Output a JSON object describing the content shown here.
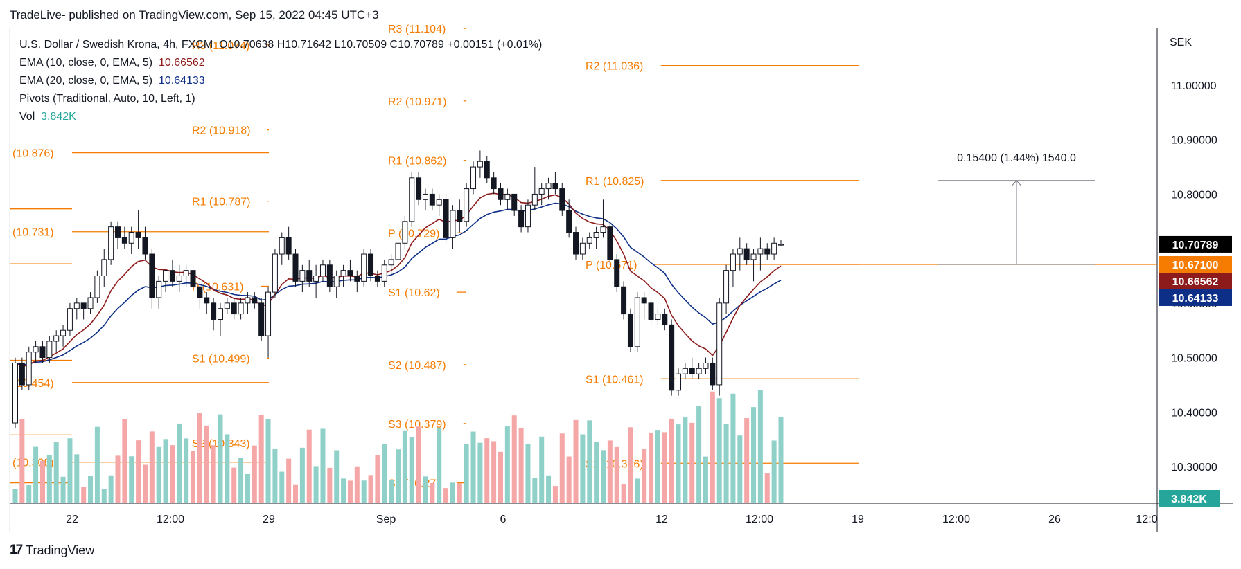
{
  "caption": "TradeLive- published on TradingView.com, Sep 15, 2022 04:45 UTC+3",
  "footer": {
    "logo_text": "TradingView",
    "logo_icon": "tradingview-logo-icon"
  },
  "legend": {
    "symbol": "U.S. Dollar / Swedish Krona, 4h, FXCM",
    "ohlc": "O10.70638  H10.71642  L10.70509  C10.70789  +0.00151 (+0.01%)",
    "ema10_label": "EMA (10, close, 0, EMA, 5)",
    "ema10_value": "10.66562",
    "ema20_label": "EMA (20, close, 0, EMA, 5)",
    "ema20_value": "10.64133",
    "pivots_label": "Pivots (Traditional, Auto, 10, Left, 1)",
    "vol_label": "Vol",
    "vol_value": "3.842K"
  },
  "chart_data": {
    "type": "candlestick",
    "axis_unit": "SEK",
    "yticks": [
      "11.00000",
      "10.90000",
      "10.80000",
      "10.70000",
      "10.60000",
      "10.50000",
      "10.40000",
      "10.30000"
    ],
    "ytick_values": [
      11.0,
      10.9,
      10.8,
      10.7,
      10.6,
      10.5,
      10.4,
      10.3
    ],
    "xticks": [
      "22",
      "12:00",
      "29",
      "Sep",
      "6",
      "12",
      "12:00",
      "19",
      "12:00",
      "26",
      "12:0"
    ],
    "price_tags": [
      {
        "text": "10.70789",
        "value": 10.70789,
        "bg": "#000000"
      },
      {
        "text": "10.67100",
        "value": 10.671,
        "bg": "#f57c00"
      },
      {
        "text": "10.66562",
        "value": 10.66562,
        "bg": "#8e1b1b"
      },
      {
        "text": "10.64133",
        "value": 10.64133,
        "bg": "#0d2f87"
      }
    ],
    "volume_tag": {
      "text": "3.842K",
      "bg": "#26a69a"
    },
    "pivot_levels": [
      {
        "label": "(10.876)",
        "value": 10.876,
        "period": 0
      },
      {
        "label": "(10.731)",
        "value": 10.731,
        "period": 0
      },
      {
        "label": "(10.454)",
        "value": 10.454,
        "period": 0
      },
      {
        "label": "(10.308)",
        "value": 10.308,
        "period": 0
      },
      {
        "label": "",
        "value": 10.773,
        "period": 0
      },
      {
        "label": "",
        "value": 10.672,
        "period": 0
      },
      {
        "label": "",
        "value": 10.495,
        "period": 0
      },
      {
        "label": "",
        "value": 10.358,
        "period": 0
      },
      {
        "label": "",
        "value": 10.27,
        "period": 0
      },
      {
        "label": "R3 (11.074)",
        "value": 11.074,
        "period": 1
      },
      {
        "label": "R2 (10.918)",
        "value": 10.918,
        "period": 1
      },
      {
        "label": "R1 (10.787)",
        "value": 10.787,
        "period": 1
      },
      {
        "label": "P (10.631)",
        "value": 10.631,
        "period": 1
      },
      {
        "label": "S1 (10.499)",
        "value": 10.499,
        "period": 1
      },
      {
        "label": "S2 (10.343)",
        "value": 10.343,
        "period": 1
      },
      {
        "label": "R3 (11.104)",
        "value": 11.104,
        "period": 2
      },
      {
        "label": "R2 (10.971)",
        "value": 10.971,
        "period": 2
      },
      {
        "label": "R1 (10.862)",
        "value": 10.862,
        "period": 2
      },
      {
        "label": "P (10.729)",
        "value": 10.729,
        "period": 2
      },
      {
        "label": "S1 (10.62)",
        "value": 10.62,
        "period": 2
      },
      {
        "label": "S2 (10.487)",
        "value": 10.487,
        "period": 2
      },
      {
        "label": "S3 (10.379)",
        "value": 10.379,
        "period": 2
      },
      {
        "label": "S4 (10.27)",
        "value": 10.27,
        "period": 2
      },
      {
        "label": "R2 (11.036)",
        "value": 11.036,
        "period": 3
      },
      {
        "label": "R1 (10.825)",
        "value": 10.825,
        "period": 3
      },
      {
        "label": "P (10.671)",
        "value": 10.671,
        "period": 3
      },
      {
        "label": "S1 (10.461)",
        "value": 10.461,
        "period": 3
      },
      {
        "label": "S2 (10.306)",
        "value": 10.306,
        "period": 3
      }
    ],
    "measure": {
      "text": "0.15400 (1.44%) 1540.0",
      "from": 10.671,
      "to": 10.825
    },
    "candles": [
      [
        10.38,
        10.5,
        10.37,
        10.49
      ],
      [
        10.49,
        10.5,
        10.44,
        10.45
      ],
      [
        10.45,
        10.52,
        10.44,
        10.51
      ],
      [
        10.51,
        10.53,
        10.49,
        10.52
      ],
      [
        10.52,
        10.53,
        10.49,
        10.5
      ],
      [
        10.5,
        10.54,
        10.49,
        10.53
      ],
      [
        10.53,
        10.55,
        10.51,
        10.54
      ],
      [
        10.54,
        10.56,
        10.52,
        10.55
      ],
      [
        10.55,
        10.6,
        10.54,
        10.59
      ],
      [
        10.59,
        10.61,
        10.57,
        10.6
      ],
      [
        10.6,
        10.6,
        10.57,
        10.59
      ],
      [
        10.59,
        10.62,
        10.58,
        10.61
      ],
      [
        10.61,
        10.66,
        10.6,
        10.65
      ],
      [
        10.65,
        10.7,
        10.63,
        10.68
      ],
      [
        10.68,
        10.75,
        10.67,
        10.74
      ],
      [
        10.74,
        10.75,
        10.7,
        10.72
      ],
      [
        10.72,
        10.74,
        10.7,
        10.71
      ],
      [
        10.71,
        10.74,
        10.69,
        10.73
      ],
      [
        10.73,
        10.77,
        10.7,
        10.72
      ],
      [
        10.72,
        10.74,
        10.68,
        10.69
      ],
      [
        10.69,
        10.7,
        10.59,
        10.61
      ],
      [
        10.61,
        10.65,
        10.59,
        10.64
      ],
      [
        10.64,
        10.66,
        10.62,
        10.66
      ],
      [
        10.66,
        10.68,
        10.63,
        10.64
      ],
      [
        10.64,
        10.67,
        10.62,
        10.65
      ],
      [
        10.65,
        10.67,
        10.63,
        10.66
      ],
      [
        10.66,
        10.67,
        10.62,
        10.63
      ],
      [
        10.63,
        10.64,
        10.59,
        10.61
      ],
      [
        10.61,
        10.62,
        10.58,
        10.6
      ],
      [
        10.6,
        10.61,
        10.55,
        10.57
      ],
      [
        10.57,
        10.6,
        10.54,
        10.59
      ],
      [
        10.59,
        10.61,
        10.58,
        10.6
      ],
      [
        10.6,
        10.61,
        10.57,
        10.58
      ],
      [
        10.58,
        10.61,
        10.57,
        10.6
      ],
      [
        10.6,
        10.62,
        10.58,
        10.61
      ],
      [
        10.61,
        10.62,
        10.59,
        10.6
      ],
      [
        10.6,
        10.61,
        10.53,
        10.54
      ],
      [
        10.54,
        10.63,
        10.5,
        10.62
      ],
      [
        10.62,
        10.7,
        10.61,
        10.69
      ],
      [
        10.69,
        10.73,
        10.67,
        10.72
      ],
      [
        10.72,
        10.74,
        10.68,
        10.69
      ],
      [
        10.69,
        10.7,
        10.63,
        10.64
      ],
      [
        10.64,
        10.67,
        10.62,
        10.66
      ],
      [
        10.66,
        10.68,
        10.63,
        10.64
      ],
      [
        10.64,
        10.67,
        10.61,
        10.65
      ],
      [
        10.65,
        10.68,
        10.64,
        10.67
      ],
      [
        10.67,
        10.68,
        10.62,
        10.63
      ],
      [
        10.63,
        10.66,
        10.61,
        10.65
      ],
      [
        10.65,
        10.67,
        10.63,
        10.66
      ],
      [
        10.66,
        10.68,
        10.64,
        10.65
      ],
      [
        10.65,
        10.66,
        10.62,
        10.64
      ],
      [
        10.64,
        10.7,
        10.63,
        10.69
      ],
      [
        10.69,
        10.7,
        10.64,
        10.65
      ],
      [
        10.65,
        10.66,
        10.63,
        10.64
      ],
      [
        10.64,
        10.68,
        10.63,
        10.67
      ],
      [
        10.67,
        10.69,
        10.65,
        10.68
      ],
      [
        10.68,
        10.72,
        10.67,
        10.71
      ],
      [
        10.71,
        10.76,
        10.7,
        10.75
      ],
      [
        10.75,
        10.84,
        10.74,
        10.83
      ],
      [
        10.83,
        10.84,
        10.78,
        10.79
      ],
      [
        10.79,
        10.81,
        10.77,
        10.8
      ],
      [
        10.8,
        10.81,
        10.77,
        10.78
      ],
      [
        10.78,
        10.8,
        10.76,
        10.79
      ],
      [
        10.79,
        10.8,
        10.71,
        10.72
      ],
      [
        10.72,
        10.78,
        10.7,
        10.77
      ],
      [
        10.77,
        10.79,
        10.73,
        10.75
      ],
      [
        10.75,
        10.82,
        10.74,
        10.81
      ],
      [
        10.81,
        10.86,
        10.8,
        10.85
      ],
      [
        10.85,
        10.88,
        10.83,
        10.86
      ],
      [
        10.86,
        10.87,
        10.82,
        10.83
      ],
      [
        10.83,
        10.84,
        10.8,
        10.81
      ],
      [
        10.81,
        10.82,
        10.78,
        10.79
      ],
      [
        10.79,
        10.81,
        10.77,
        10.8
      ],
      [
        10.8,
        10.8,
        10.76,
        10.77
      ],
      [
        10.77,
        10.78,
        10.73,
        10.74
      ],
      [
        10.74,
        10.79,
        10.73,
        10.78
      ],
      [
        10.78,
        10.85,
        10.77,
        10.8
      ],
      [
        10.8,
        10.82,
        10.78,
        10.81
      ],
      [
        10.81,
        10.83,
        10.79,
        10.82
      ],
      [
        10.82,
        10.84,
        10.8,
        10.81
      ],
      [
        10.81,
        10.82,
        10.76,
        10.77
      ],
      [
        10.77,
        10.79,
        10.72,
        10.73
      ],
      [
        10.73,
        10.74,
        10.68,
        10.69
      ],
      [
        10.69,
        10.72,
        10.68,
        10.71
      ],
      [
        10.71,
        10.73,
        10.7,
        10.72
      ],
      [
        10.72,
        10.74,
        10.7,
        10.73
      ],
      [
        10.73,
        10.79,
        10.72,
        10.74
      ],
      [
        10.74,
        10.75,
        10.67,
        10.68
      ],
      [
        10.68,
        10.69,
        10.62,
        10.63
      ],
      [
        10.63,
        10.64,
        10.57,
        10.58
      ],
      [
        10.58,
        10.59,
        10.51,
        10.52
      ],
      [
        10.52,
        10.62,
        10.51,
        10.61
      ],
      [
        10.61,
        10.62,
        10.57,
        10.6
      ],
      [
        10.6,
        10.61,
        10.56,
        10.57
      ],
      [
        10.57,
        10.59,
        10.56,
        10.58
      ],
      [
        10.58,
        10.59,
        10.55,
        10.56
      ],
      [
        10.56,
        10.57,
        10.43,
        10.44
      ],
      [
        10.44,
        10.48,
        10.43,
        10.47
      ],
      [
        10.47,
        10.49,
        10.46,
        10.48
      ],
      [
        10.48,
        10.5,
        10.46,
        10.47
      ],
      [
        10.47,
        10.49,
        10.46,
        10.48
      ],
      [
        10.48,
        10.5,
        10.47,
        10.49
      ],
      [
        10.49,
        10.5,
        10.44,
        10.45
      ],
      [
        10.45,
        10.61,
        10.43,
        10.6
      ],
      [
        10.6,
        10.67,
        10.58,
        10.66
      ],
      [
        10.66,
        10.7,
        10.63,
        10.69
      ],
      [
        10.69,
        10.72,
        10.66,
        10.7
      ],
      [
        10.7,
        10.71,
        10.67,
        10.68
      ],
      [
        10.68,
        10.7,
        10.64,
        10.69
      ],
      [
        10.69,
        10.72,
        10.66,
        10.7
      ],
      [
        10.7,
        10.71,
        10.68,
        10.69
      ],
      [
        10.69,
        10.72,
        10.68,
        10.71
      ],
      [
        10.7064,
        10.7164,
        10.7051,
        10.7079
      ]
    ]
  }
}
